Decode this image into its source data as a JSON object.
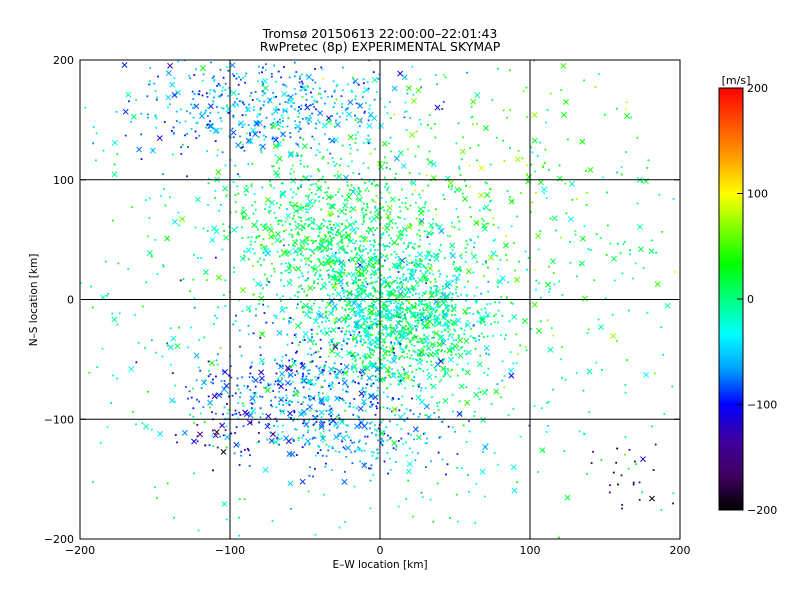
{
  "chart_data": {
    "type": "scatter",
    "title": "Tromsø 20150613 22:00:00–22:01:43",
    "subtitle": "RwPretec (8p) EXPERIMENTAL SKYMAP",
    "xlabel": "E–W location [km]",
    "ylabel": "N–S location [km]",
    "xlim": [
      -200,
      200
    ],
    "ylim": [
      -200,
      200
    ],
    "x_ticks": [
      -200,
      -100,
      0,
      100,
      200
    ],
    "y_ticks": [
      -200,
      -100,
      0,
      100,
      200
    ],
    "x_tick_labels": [
      "−200",
      "−100",
      "0",
      "100",
      "200"
    ],
    "y_tick_labels": [
      "−200",
      "−100",
      "0",
      "100",
      "200"
    ],
    "grid": true,
    "marker_types": [
      "dot",
      "x"
    ],
    "colorbar": {
      "label": "[m/s]",
      "min": -200,
      "max": 200,
      "ticks": [
        200,
        100,
        0,
        -100,
        -200
      ],
      "tick_labels": [
        "200",
        "100",
        "0",
        "−100",
        "−200"
      ]
    },
    "density_clusters": [
      {
        "center": [
          5,
          0
        ],
        "spread": [
          30,
          32
        ],
        "velocity": -20
      },
      {
        "center": [
          20,
          -30
        ],
        "spread": [
          28,
          24
        ],
        "velocity": 0
      },
      {
        "center": [
          -40,
          60
        ],
        "spread": [
          30,
          32
        ],
        "velocity": 10
      },
      {
        "center": [
          -70,
          160
        ],
        "spread": [
          48,
          22
        ],
        "velocity": -60
      },
      {
        "center": [
          -60,
          -70
        ],
        "spread": [
          42,
          26
        ],
        "velocity": -80
      },
      {
        "center": [
          -100,
          -110
        ],
        "spread": [
          14,
          12
        ],
        "velocity": -140
      },
      {
        "center": [
          -15,
          -110
        ],
        "spread": [
          32,
          22
        ],
        "velocity": -60
      },
      {
        "center": [
          60,
          90
        ],
        "spread": [
          60,
          60
        ],
        "velocity": 40
      },
      {
        "center": [
          0,
          0
        ],
        "spread": [
          120,
          100
        ],
        "velocity": 0
      },
      {
        "center": [
          170,
          -150
        ],
        "spread": [
          14,
          20
        ],
        "velocity": -170
      }
    ]
  },
  "colors": {
    "colormap": [
      "#000000",
      "#400060",
      "#4000a0",
      "#0000ff",
      "#00a0ff",
      "#00ffff",
      "#00ff80",
      "#00ff00",
      "#80ff00",
      "#ffff00",
      "#ffa000",
      "#ff5000",
      "#ff0000"
    ]
  }
}
